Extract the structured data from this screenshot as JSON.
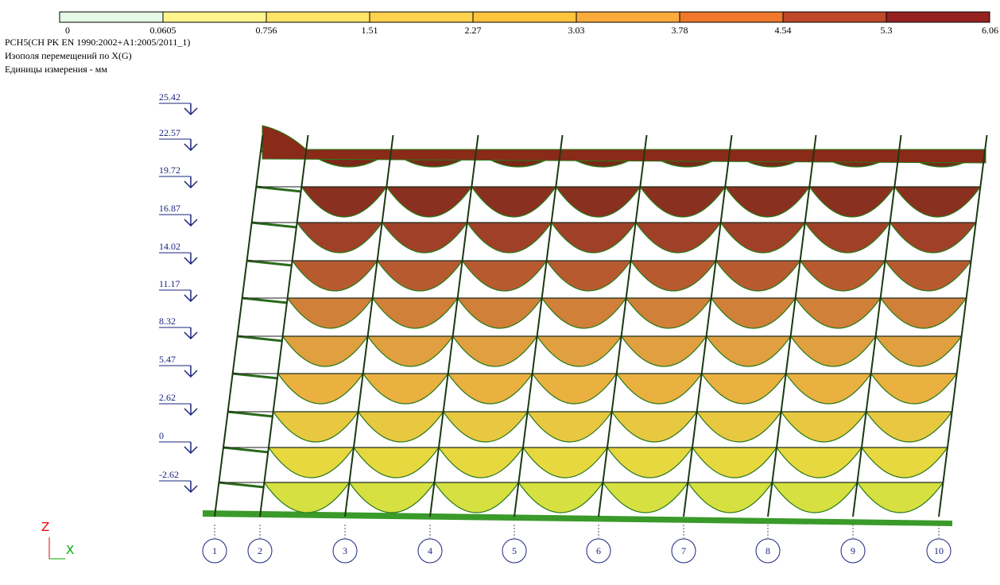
{
  "legend": {
    "labels": [
      "0",
      "0.0605",
      "0.756",
      "1.51",
      "2.27",
      "3.03",
      "3.78",
      "4.54",
      "5.3",
      "6.06"
    ],
    "colors": [
      "#e6fbe6",
      "#fff58c",
      "#ffe466",
      "#ffd24d",
      "#ffc43d",
      "#fbaa3c",
      "#f0782c",
      "#c0482a",
      "#962222"
    ]
  },
  "header": {
    "lines": [
      "PCH5(CH PK EN 1990:2002+A1:2005/2011_1)",
      "Изополя перемещений по X(G)",
      "Единицы измерения - мм"
    ]
  },
  "levels": [
    "25.42",
    "22.57",
    "19.72",
    "16.87",
    "14.02",
    "11.17",
    "8.32",
    "5.47",
    "2.62",
    "0",
    "-2.62"
  ],
  "axes": [
    "1",
    "2",
    "3",
    "4",
    "5",
    "6",
    "7",
    "8",
    "9",
    "10"
  ],
  "coordinate_axes": {
    "vertical": "Z",
    "horizontal": "X"
  }
}
